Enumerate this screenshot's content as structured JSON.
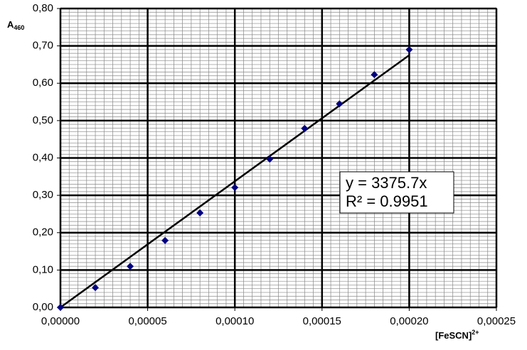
{
  "chart_data": {
    "type": "scatter",
    "ylabel": "A",
    "ylabel_sub": "460",
    "xlabel": "[FeSCN]",
    "xlabel_sup": "2+",
    "x": [
      0,
      2e-05,
      4e-05,
      6e-05,
      8e-05,
      0.0001,
      0.00012,
      0.00014,
      0.00016,
      0.00018,
      0.0002
    ],
    "values": [
      0.0,
      0.053,
      0.11,
      0.179,
      0.253,
      0.321,
      0.397,
      0.479,
      0.545,
      0.623,
      0.69
    ],
    "color": "#000080",
    "xlim": [
      0,
      0.00025
    ],
    "xticks": [
      {
        "value": 0,
        "label": "0,00000"
      },
      {
        "value": 5e-05,
        "label": "0,00005"
      },
      {
        "value": 0.0001,
        "label": "0,00010"
      },
      {
        "value": 0.00015,
        "label": "0,00015"
      },
      {
        "value": 0.0002,
        "label": "0,00020"
      },
      {
        "value": 0.00025,
        "label": "0,00025"
      }
    ],
    "ylim": [
      0,
      0.8
    ],
    "yticks": [
      {
        "value": 0,
        "label": "0,00"
      },
      {
        "value": 0.1,
        "label": "0,10"
      },
      {
        "value": 0.2,
        "label": "0,20"
      },
      {
        "value": 0.3,
        "label": "0,30"
      },
      {
        "value": 0.4,
        "label": "0,40"
      },
      {
        "value": 0.5,
        "label": "0,50"
      },
      {
        "value": 0.6,
        "label": "0,60"
      },
      {
        "value": 0.7,
        "label": "0,70"
      },
      {
        "value": 0.8,
        "label": "0,80"
      }
    ],
    "grid": true,
    "minor_grid": {
      "x": 10,
      "y": 10
    },
    "trendline": {
      "slope": 3375.7,
      "label": "y = 3375.7x",
      "r2_label": "R² = 0.9951"
    }
  }
}
